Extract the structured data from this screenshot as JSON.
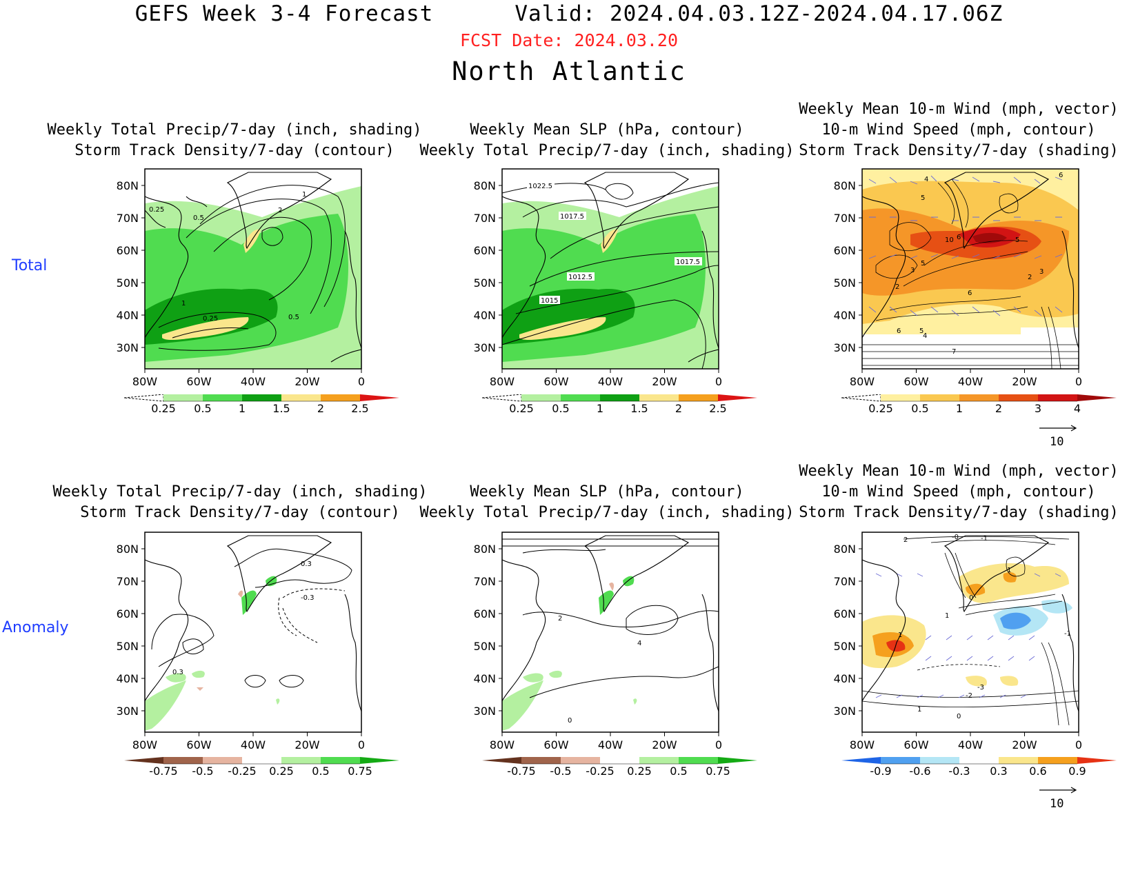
{
  "header": {
    "title": "GEFS Week 3-4 Forecast",
    "valid": "Valid: 2024.04.03.12Z-2024.04.17.06Z",
    "fcst_date": "FCST Date: 2024.03.20",
    "region": "North Atlantic"
  },
  "rows": [
    {
      "label": "Total"
    },
    {
      "label": "Anomaly"
    }
  ],
  "panel_titles": {
    "precip_storm": [
      "Weekly Total Precip/7-day (inch, shading)",
      "Storm Track Density/7-day (contour)"
    ],
    "slp_precip": [
      "Weekly Mean SLP (hPa, contour)",
      "Weekly Total Precip/7-day (inch, shading)"
    ],
    "wind_storm": [
      "Weekly Mean 10-m Wind (mph, vector)",
      "10-m Wind Speed (mph, contour)",
      "Storm Track Density/7-day (shading)"
    ]
  },
  "axes": {
    "lat_ticks": [
      "80N",
      "70N",
      "60N",
      "50N",
      "40N",
      "30N"
    ],
    "lon_ticks": [
      "80W",
      "60W",
      "40W",
      "20W",
      "0"
    ]
  },
  "colorbars": {
    "precip_total": {
      "labels": [
        "0.25",
        "0.5",
        "1",
        "1.5",
        "2",
        "2.5"
      ],
      "colors": [
        "#ffffff",
        "#b4f0a0",
        "#50dc50",
        "#0fa014",
        "#fae68c",
        "#f5a01e",
        "#dc1414"
      ]
    },
    "storm_total": {
      "labels": [
        "0.25",
        "0.5",
        "1",
        "2",
        "3",
        "4"
      ],
      "colors": [
        "#ffffff",
        "#fff0a0",
        "#fac850",
        "#f59628",
        "#e65014",
        "#d21414",
        "#a00a0a"
      ]
    },
    "precip_anom": {
      "labels": [
        "-0.75",
        "-0.5",
        "-0.25",
        "0.25",
        "0.5",
        "0.75"
      ],
      "colors": [
        "#64321e",
        "#a0644b",
        "#e6b4a0",
        "#ffffff",
        "#b4f0a0",
        "#50dc50",
        "#14aa14"
      ]
    },
    "storm_anom": {
      "labels": [
        "-0.9",
        "-0.6",
        "-0.3",
        "0.3",
        "0.6",
        "0.9"
      ],
      "colors": [
        "#1e64e6",
        "#50a0f0",
        "#b4e6f5",
        "#ffffff",
        "#fae68c",
        "#f5a01e",
        "#e63214"
      ]
    }
  },
  "vector_legend": {
    "value": "10"
  },
  "contour_labels": {
    "total_precip_storm": [
      "1",
      "2",
      "0.25",
      "0.5",
      "1",
      "0.25",
      "0.5"
    ],
    "total_slp": [
      "1022.5",
      "1017.5",
      "1017.5",
      "1012.5",
      "1015"
    ],
    "total_wind": [
      "4",
      "5",
      "10",
      "6",
      "5",
      "3",
      "5",
      "2",
      "3",
      "2",
      "6",
      "6",
      "5",
      "4",
      "7",
      "6"
    ],
    "anom_precip_storm": [
      "0.3",
      "-0.3",
      "0.3"
    ],
    "anom_slp": [
      "2",
      "4",
      "0"
    ],
    "anom_wind": [
      "2",
      "-0",
      "-1",
      "1",
      "0",
      "1",
      "-1",
      "-3",
      "-2",
      "1",
      "0",
      "1"
    ]
  }
}
